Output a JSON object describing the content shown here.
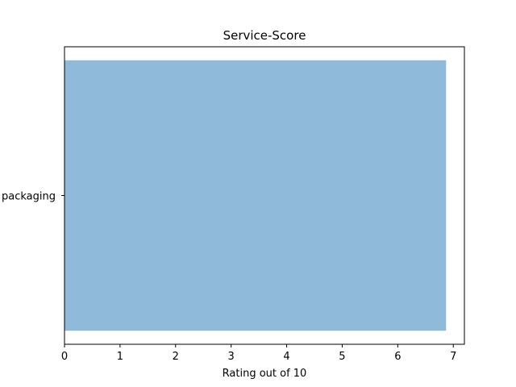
{
  "chart_data": {
    "type": "bar",
    "orientation": "horizontal",
    "title": "Service-Score",
    "xlabel": "Rating out of 10",
    "ylabel": "",
    "categories": [
      "packaging"
    ],
    "values": [
      6.87
    ],
    "xlim": [
      0,
      7.2
    ],
    "xticks": [
      0,
      1,
      2,
      3,
      4,
      5,
      6,
      7
    ],
    "grid": false,
    "legend": "none",
    "bar_color": "#8fbad9"
  }
}
